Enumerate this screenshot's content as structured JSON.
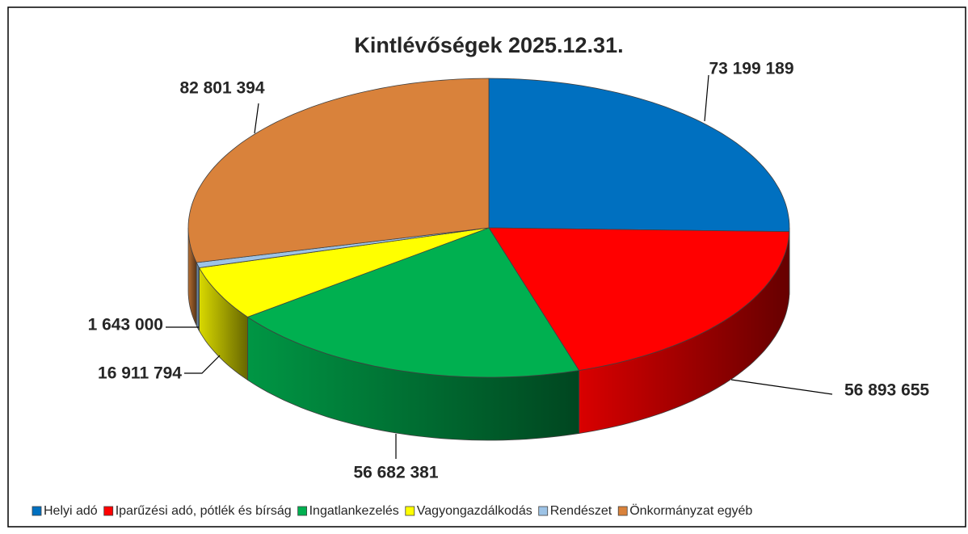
{
  "chart_data": {
    "type": "pie3d",
    "title": "Kintlévőségek 2025.12.31.",
    "categories": [
      "Helyi adó",
      "Iparűzési adó, pótlék és bírság",
      "Ingatlankezelés",
      "Vagyongazdálkodás",
      "Rendészet",
      "Önkormányzat egyéb"
    ],
    "values": [
      73199189,
      56893655,
      56682381,
      16911794,
      1643000,
      82801394
    ],
    "value_labels": [
      "73 199 189",
      "56 893 655",
      "56 682 381",
      "16 911 794",
      "1 643 000",
      "82 801 394"
    ],
    "colors": [
      "#0070c0",
      "#ff0000",
      "#00b050",
      "#ffff00",
      "#9dc3e6",
      "#d9823b"
    ],
    "legend": "bottom"
  }
}
